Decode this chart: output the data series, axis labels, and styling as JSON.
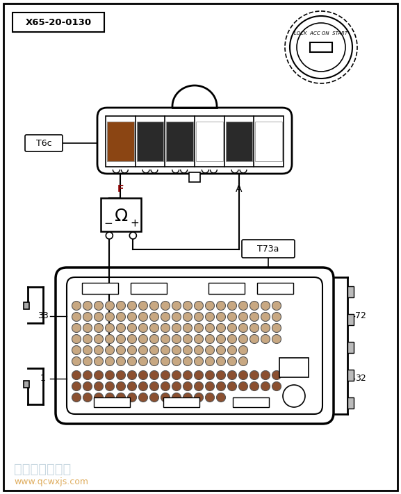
{
  "bg_color": "#ffffff",
  "line_color": "#000000",
  "label_x65": "X65-20-0130",
  "label_t6c": "T6c",
  "label_t73a": "T73a",
  "label_f": "F",
  "label_a": "A",
  "label_33": "33",
  "label_1": "1",
  "label_72": "72",
  "label_32": "32",
  "watermark1": "汽车维修技术网",
  "watermark2": "www.qcwxjs.com",
  "lock_text": "LOCK  ACC ON  START",
  "omega": "Ω",
  "t6c_slots": [
    "#8B4513",
    "#2a2a2a",
    "#2a2a2a",
    "#ffffff",
    "#2a2a2a",
    "#ffffff"
  ],
  "pin_color_top": "#c8a882",
  "pin_color_bot": "#8B5030",
  "pin_outline": "#555555"
}
